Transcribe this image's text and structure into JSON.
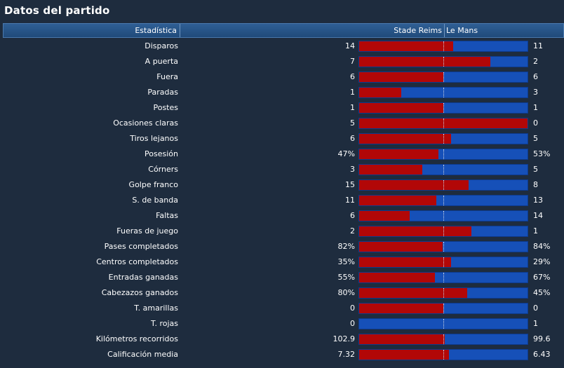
{
  "title": "Datos del partido",
  "header": {
    "stat_label": "Estadística",
    "home_team": "Stade Reims",
    "away_team": "Le Mans"
  },
  "colors": {
    "home": "#b20707",
    "away": "#1650b8"
  },
  "stats": [
    {
      "label": "Disparos",
      "home": "14",
      "away": "11",
      "home_share": 0.56
    },
    {
      "label": "A puerta",
      "home": "7",
      "away": "2",
      "home_share": 0.78
    },
    {
      "label": "Fuera",
      "home": "6",
      "away": "6",
      "home_share": 0.5
    },
    {
      "label": "Paradas",
      "home": "1",
      "away": "3",
      "home_share": 0.25
    },
    {
      "label": "Postes",
      "home": "1",
      "away": "1",
      "home_share": 0.5
    },
    {
      "label": "Ocasiones claras",
      "home": "5",
      "away": "0",
      "home_share": 1.0
    },
    {
      "label": "Tiros lejanos",
      "home": "6",
      "away": "5",
      "home_share": 0.545
    },
    {
      "label": "Posesión",
      "home": "47%",
      "away": "53%",
      "home_share": 0.47
    },
    {
      "label": "Córners",
      "home": "3",
      "away": "5",
      "home_share": 0.375
    },
    {
      "label": "Golpe franco",
      "home": "15",
      "away": "8",
      "home_share": 0.652
    },
    {
      "label": "S. de banda",
      "home": "11",
      "away": "13",
      "home_share": 0.458
    },
    {
      "label": "Faltas",
      "home": "6",
      "away": "14",
      "home_share": 0.3
    },
    {
      "label": "Fueras de juego",
      "home": "2",
      "away": "1",
      "home_share": 0.667
    },
    {
      "label": "Pases completados",
      "home": "82%",
      "away": "84%",
      "home_share": 0.494
    },
    {
      "label": "Centros completados",
      "home": "35%",
      "away": "29%",
      "home_share": 0.547
    },
    {
      "label": "Entradas ganadas",
      "home": "55%",
      "away": "67%",
      "home_share": 0.451
    },
    {
      "label": "Cabezazos ganados",
      "home": "80%",
      "away": "45%",
      "home_share": 0.64
    },
    {
      "label": "T. amarillas",
      "home": "0",
      "away": "0",
      "home_share": 0.5
    },
    {
      "label": "T. rojas",
      "home": "0",
      "away": "1",
      "home_share": 0.0
    },
    {
      "label": "Kilómetros recorridos",
      "home": "102.9",
      "away": "99.6",
      "home_share": 0.508
    },
    {
      "label": "Calificación media",
      "home": "7.32",
      "away": "6.43",
      "home_share": 0.532
    }
  ]
}
